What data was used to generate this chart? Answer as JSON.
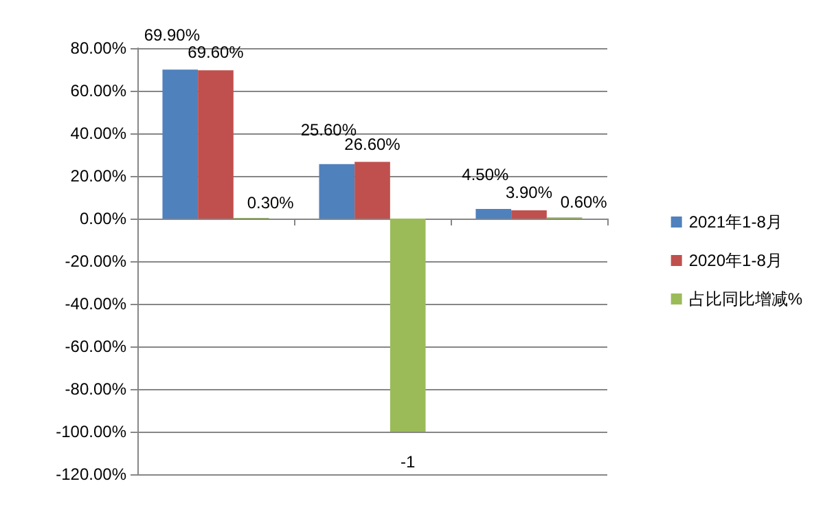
{
  "chart_data": {
    "type": "bar",
    "categories": [
      null,
      null,
      null
    ],
    "series": [
      {
        "name": "2021年1-8月",
        "color": "#4f81bd",
        "values": [
          69.9,
          25.6,
          4.5
        ],
        "value_labels": [
          "69.90%",
          "25.60%",
          "4.50%"
        ]
      },
      {
        "name": "2020年1-8月",
        "color": "#c0504d",
        "values": [
          69.6,
          26.6,
          3.9
        ],
        "value_labels": [
          "69.60%",
          "26.60%",
          "3.90%"
        ]
      },
      {
        "name": "占比同比增减%",
        "color": "#9bbb59",
        "values": [
          0.3,
          -100,
          0.6
        ],
        "value_labels": [
          "0.30%",
          null,
          "0.60%"
        ]
      }
    ],
    "annotations": [
      {
        "text": "-1",
        "y": -100
      }
    ],
    "ylim": [
      -120,
      80
    ],
    "yticks": [
      {
        "value": -120,
        "label": "-120.00%"
      },
      {
        "value": -100,
        "label": "-100.00%"
      },
      {
        "value": -80,
        "label": "-80.00%"
      },
      {
        "value": -60,
        "label": "-60.00%"
      },
      {
        "value": -40,
        "label": "-40.00%"
      },
      {
        "value": -20,
        "label": "-20.00%"
      },
      {
        "value": 0,
        "label": "0.00%"
      },
      {
        "value": 20,
        "label": "20.00%"
      },
      {
        "value": 40,
        "label": "40.00%"
      },
      {
        "value": 60,
        "label": "60.00%"
      },
      {
        "value": 80,
        "label": "80.00%"
      }
    ],
    "grid": "y",
    "legend": "right"
  }
}
